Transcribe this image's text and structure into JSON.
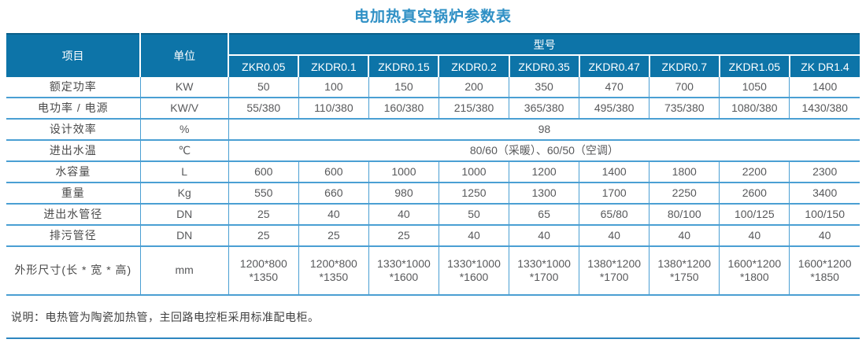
{
  "title": "电加热真空锅炉参数表",
  "colors": {
    "header_bg": "#0d74a8",
    "grid_line": "#4a9fd3",
    "title_blue": "#2f90c5",
    "cell_text": "#58595b"
  },
  "table": {
    "corner_item": "项目",
    "corner_unit": "单位",
    "model_group_label": "型号",
    "models": [
      "ZKR0.05",
      "ZKDR0.1",
      "ZKDR0.15",
      "ZKDR0.2",
      "ZKDR0.35",
      "ZKDR0.47",
      "ZKDR0.7",
      "ZKDR1.05",
      "ZK DR1.4"
    ],
    "rows": [
      {
        "label": "额定功率",
        "unit": "KW",
        "values": [
          "50",
          "100",
          "150",
          "200",
          "350",
          "470",
          "700",
          "1050",
          "1400"
        ]
      },
      {
        "label": "电功率 / 电源",
        "unit": "KW/V",
        "values": [
          "55/380",
          "110/380",
          "160/380",
          "215/380",
          "365/380",
          "495/380",
          "735/380",
          "1080/380",
          "1430/380"
        ]
      },
      {
        "label": "设计效率",
        "unit": "%",
        "span_value": "98"
      },
      {
        "label": "进出水温",
        "unit": "℃",
        "span_value": "80/60（采暖）、60/50（空调）"
      },
      {
        "label": "水容量",
        "unit": "L",
        "values": [
          "600",
          "600",
          "1000",
          "1000",
          "1200",
          "1400",
          "1800",
          "2200",
          "2300"
        ]
      },
      {
        "label": "重量",
        "unit": "Kg",
        "values": [
          "550",
          "660",
          "980",
          "1250",
          "1300",
          "1700",
          "2250",
          "2600",
          "3400"
        ]
      },
      {
        "label": "进出水管径",
        "unit": "DN",
        "values": [
          "25",
          "40",
          "40",
          "50",
          "65",
          "65/80",
          "80/100",
          "100/125",
          "100/150"
        ]
      },
      {
        "label": "排污管径",
        "unit": "DN",
        "values": [
          "25",
          "25",
          "25",
          "40",
          "40",
          "40",
          "40",
          "40",
          "40"
        ]
      },
      {
        "label": "外形尺寸(长 * 宽 * 高)",
        "unit": "mm",
        "tall": true,
        "values": [
          [
            "1200*800",
            "*1350"
          ],
          [
            "1200*800",
            "*1350"
          ],
          [
            "1330*1000",
            "*1600"
          ],
          [
            "1330*1000",
            "*1600"
          ],
          [
            "1330*1000",
            "*1700"
          ],
          [
            "1380*1200",
            "*1700"
          ],
          [
            "1380*1200",
            "*1750"
          ],
          [
            "1600*1200",
            "*1800"
          ],
          [
            "1600*1200",
            "*1850"
          ]
        ]
      }
    ],
    "note": "说明：电热管为陶瓷加热管，主回路电控柜采用标准配电柜。"
  }
}
